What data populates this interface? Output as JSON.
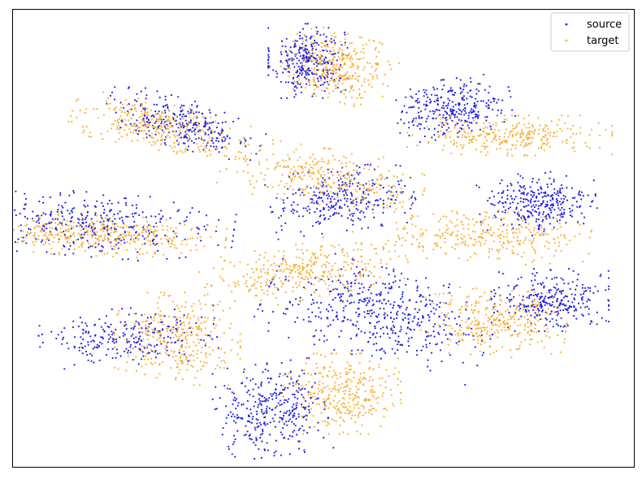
{
  "chart_data": {
    "type": "scatter",
    "title": "",
    "xlabel": "",
    "ylabel": "",
    "grid": false,
    "axis_ticks": false,
    "xlim": [
      0,
      100
    ],
    "ylim": [
      0,
      100
    ],
    "legend_position": "top-right",
    "series": [
      {
        "name": "source",
        "color": "#2525e0",
        "marker": "dot",
        "clusters": [
          {
            "cx": 47.5,
            "cy": 88.8,
            "sx": 2.9,
            "sy": 3.7,
            "rot": 0,
            "n": 320
          },
          {
            "cx": 27.5,
            "cy": 75.0,
            "sx": 6.0,
            "sy": 2.4,
            "rot": -20,
            "n": 300
          },
          {
            "cx": 71.0,
            "cy": 78.5,
            "sx": 4.3,
            "sy": 2.9,
            "rot": 10,
            "n": 300
          },
          {
            "cx": 53.0,
            "cy": 58.5,
            "sx": 5.3,
            "sy": 3.1,
            "rot": 10,
            "n": 300
          },
          {
            "cx": 12.5,
            "cy": 53.0,
            "sx": 10.5,
            "sy": 3.2,
            "rot": -6,
            "n": 380
          },
          {
            "cx": 84.5,
            "cy": 57.5,
            "sx": 4.3,
            "sy": 3.1,
            "rot": 5,
            "n": 300
          },
          {
            "cx": 59.0,
            "cy": 33.5,
            "sx": 8.5,
            "sy": 4.5,
            "rot": -20,
            "n": 480
          },
          {
            "cx": 86.5,
            "cy": 36.5,
            "sx": 4.3,
            "sy": 3.1,
            "rot": 0,
            "n": 300
          },
          {
            "cx": 18.5,
            "cy": 28.5,
            "sx": 6.5,
            "sy": 2.8,
            "rot": 5,
            "n": 260
          },
          {
            "cx": 41.5,
            "cy": 12.5,
            "sx": 4.0,
            "sy": 4.6,
            "rot": 10,
            "n": 340
          }
        ]
      },
      {
        "name": "target",
        "color": "#f8b23a",
        "marker": "dot",
        "clusters": [
          {
            "cx": 52.5,
            "cy": 87.5,
            "sx": 4.0,
            "sy": 3.3,
            "rot": -20,
            "n": 320
          },
          {
            "cx": 23.5,
            "cy": 74.5,
            "sx": 6.5,
            "sy": 2.3,
            "rot": -15,
            "n": 300
          },
          {
            "cx": 80.0,
            "cy": 72.5,
            "sx": 7.5,
            "sy": 2.0,
            "rot": 0,
            "n": 300
          },
          {
            "cx": 50.0,
            "cy": 63.5,
            "sx": 7.5,
            "sy": 2.8,
            "rot": -12,
            "n": 300
          },
          {
            "cx": 14.5,
            "cy": 50.5,
            "sx": 9.0,
            "sy": 2.0,
            "rot": -3,
            "n": 380
          },
          {
            "cx": 76.5,
            "cy": 50.5,
            "sx": 7.5,
            "sy": 2.6,
            "rot": -5,
            "n": 300
          },
          {
            "cx": 47.0,
            "cy": 43.0,
            "sx": 7.5,
            "sy": 2.8,
            "rot": 15,
            "n": 340
          },
          {
            "cx": 77.5,
            "cy": 31.5,
            "sx": 5.3,
            "sy": 3.3,
            "rot": -5,
            "n": 300
          },
          {
            "cx": 26.5,
            "cy": 28.0,
            "sx": 4.6,
            "sy": 4.6,
            "rot": 0,
            "n": 300
          },
          {
            "cx": 53.0,
            "cy": 16.0,
            "sx": 4.3,
            "sy": 4.0,
            "rot": 0,
            "n": 320
          }
        ]
      }
    ]
  }
}
